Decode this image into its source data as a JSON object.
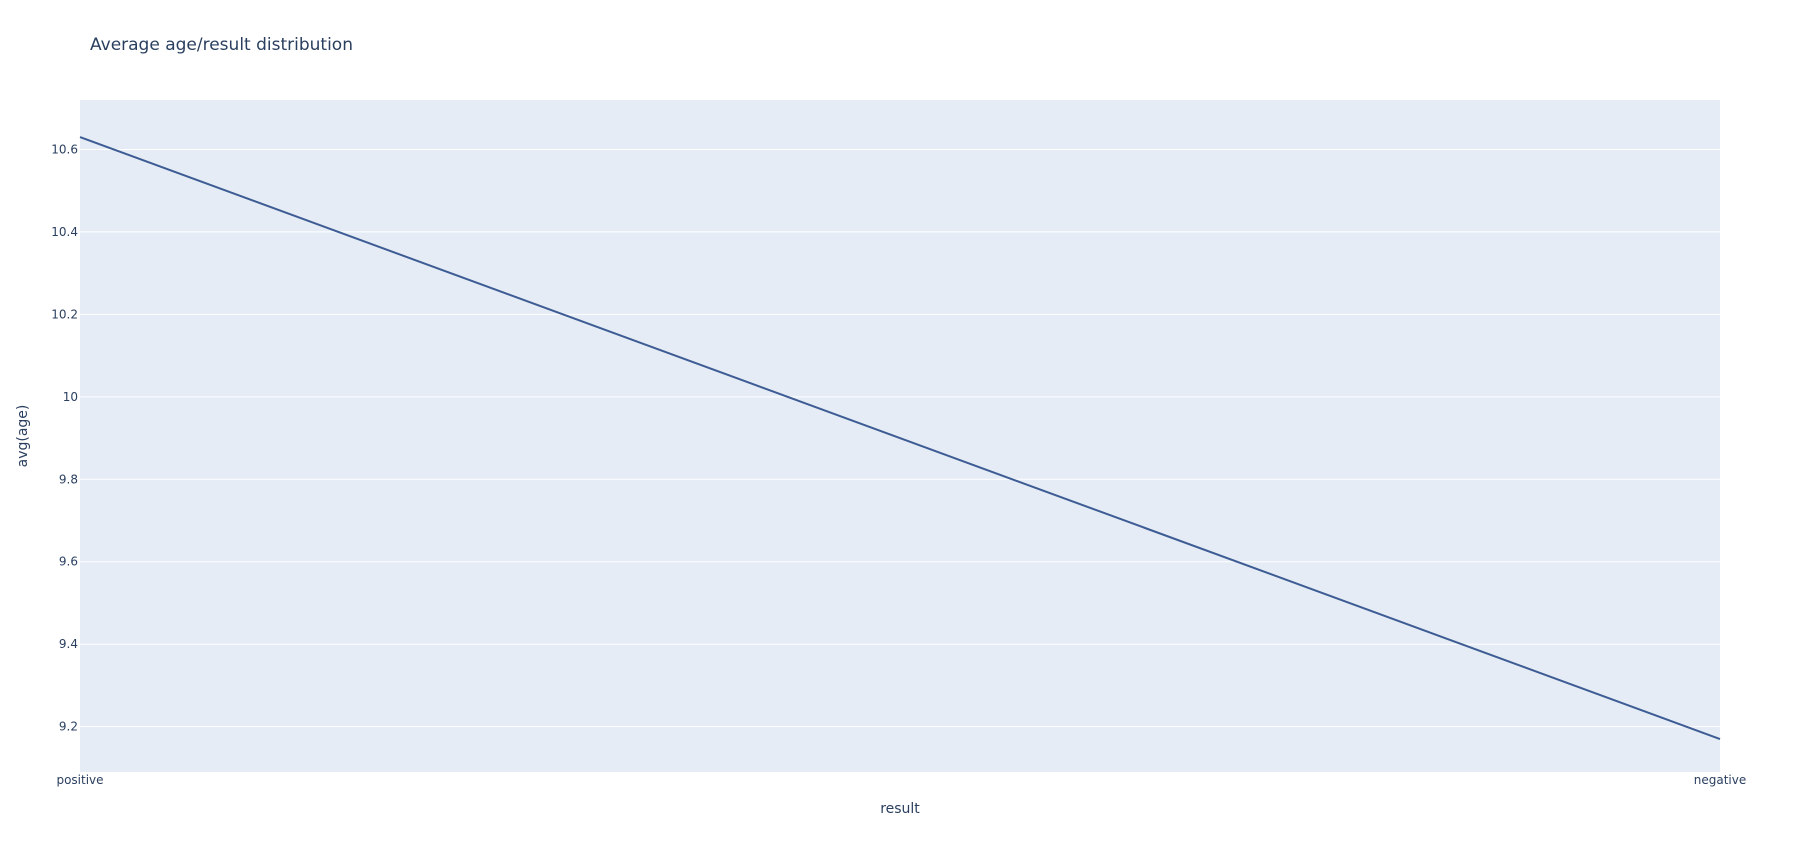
{
  "chart_data": {
    "type": "line",
    "title": "Average age/result distribution",
    "xlabel": "result",
    "ylabel": "avg(age)",
    "categories": [
      "positive",
      "negative"
    ],
    "series": [
      {
        "values": [
          10.63,
          9.17
        ],
        "color": "#3d5c94"
      }
    ],
    "ylim": [
      9.09,
      10.72
    ],
    "yticks": [
      9.2,
      9.4,
      9.6,
      9.8,
      10,
      10.2,
      10.4,
      10.6
    ],
    "ytick_labels": [
      "9.2",
      "9.4",
      "9.6",
      "9.8",
      "10",
      "10.2",
      "10.4",
      "10.6"
    ],
    "grid": true,
    "legend": "none",
    "colors": {
      "plot_background": "#e5ecf6",
      "gridline": "#ffffff",
      "text": "#2a3f5f"
    }
  }
}
